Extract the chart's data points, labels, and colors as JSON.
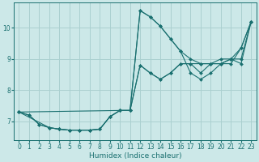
{
  "xlabel": "Humidex (Indice chaleur)",
  "ylabel": "",
  "bg_color": "#cce8e8",
  "grid_color": "#aad0d0",
  "line_color": "#1a7070",
  "xlim": [
    -0.5,
    23.5
  ],
  "ylim": [
    6.4,
    10.8
  ],
  "yticks": [
    7,
    8,
    9,
    10
  ],
  "xticks": [
    0,
    1,
    2,
    3,
    4,
    5,
    6,
    7,
    8,
    9,
    10,
    11,
    12,
    13,
    14,
    15,
    16,
    17,
    18,
    19,
    20,
    21,
    22,
    23
  ],
  "lines": [
    {
      "x": [
        0,
        1,
        2,
        3,
        4,
        5,
        6,
        7,
        8,
        9,
        10,
        11,
        12,
        13,
        14,
        15,
        16,
        17,
        18,
        19,
        20,
        21,
        22,
        23
      ],
      "y": [
        7.3,
        7.2,
        6.9,
        6.8,
        6.75,
        6.72,
        6.72,
        6.72,
        6.75,
        7.15,
        7.35,
        7.35,
        10.55,
        10.35,
        10.05,
        9.65,
        9.25,
        9.0,
        8.85,
        8.85,
        8.85,
        8.85,
        9.35,
        10.2
      ]
    },
    {
      "x": [
        0,
        10,
        11,
        12,
        13,
        14,
        15,
        16,
        17,
        18,
        19,
        20,
        21,
        22,
        23
      ],
      "y": [
        7.3,
        7.35,
        7.35,
        10.55,
        10.35,
        10.05,
        9.65,
        9.25,
        8.55,
        8.35,
        8.55,
        8.85,
        9.0,
        8.85,
        10.2
      ]
    },
    {
      "x": [
        0,
        1,
        2,
        3,
        4,
        5,
        6,
        7,
        8,
        9,
        10,
        11,
        12,
        13,
        14,
        15,
        16,
        17,
        18,
        19,
        20,
        21,
        22,
        23
      ],
      "y": [
        7.3,
        7.2,
        6.9,
        6.8,
        6.75,
        6.72,
        6.72,
        6.72,
        6.75,
        7.15,
        7.35,
        7.35,
        8.8,
        8.55,
        8.35,
        8.55,
        8.85,
        8.85,
        8.85,
        8.85,
        8.85,
        9.0,
        9.35,
        10.2
      ]
    },
    {
      "x": [
        0,
        3,
        4,
        5,
        6,
        7,
        8,
        9,
        10,
        11,
        12,
        13,
        14,
        15,
        16,
        17,
        18,
        19,
        20,
        21,
        22,
        23
      ],
      "y": [
        7.3,
        6.8,
        6.75,
        6.72,
        6.72,
        6.72,
        6.75,
        7.15,
        7.35,
        7.35,
        8.8,
        8.55,
        8.35,
        8.55,
        8.85,
        8.85,
        8.55,
        8.85,
        9.0,
        9.0,
        9.0,
        10.2
      ]
    }
  ]
}
